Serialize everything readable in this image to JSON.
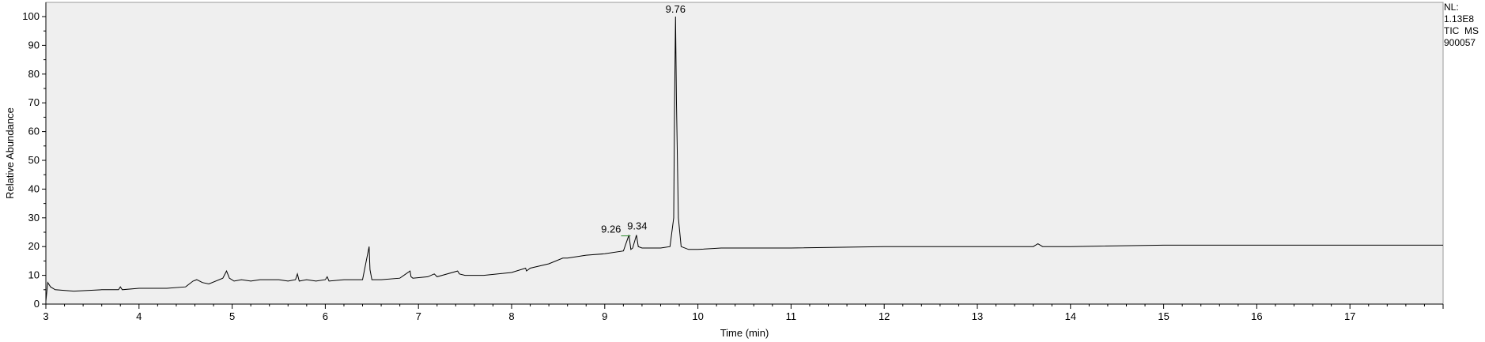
{
  "chart_data": {
    "type": "line",
    "title": "",
    "xlabel": "Time (min)",
    "ylabel": "Relative Abundance",
    "xlim": [
      3.0,
      18.0
    ],
    "ylim": [
      0,
      100
    ],
    "x_ticks": [
      3,
      4,
      5,
      6,
      7,
      8,
      9,
      10,
      11,
      12,
      13,
      14,
      15,
      16,
      17
    ],
    "y_ticks": [
      0,
      10,
      20,
      30,
      40,
      50,
      60,
      70,
      80,
      90,
      100
    ],
    "grid": false,
    "series": [
      {
        "x": [
          3.0,
          3.02,
          3.05,
          3.1,
          3.3,
          3.6,
          3.78,
          3.8,
          3.82,
          4.0,
          4.3,
          4.5,
          4.58,
          4.62,
          4.68,
          4.75,
          4.9,
          4.94,
          4.97,
          5.02,
          5.1,
          5.2,
          5.3,
          5.5,
          5.6,
          5.68,
          5.7,
          5.72,
          5.8,
          5.9,
          6.0,
          6.02,
          6.04,
          6.2,
          6.4,
          6.47,
          6.48,
          6.5,
          6.6,
          6.8,
          6.91,
          6.92,
          6.94,
          7.1,
          7.17,
          7.2,
          7.42,
          7.44,
          7.5,
          7.7,
          8.0,
          8.15,
          8.16,
          8.2,
          8.4,
          8.55,
          8.6,
          8.8,
          9.0,
          9.2,
          9.26,
          9.28,
          9.3,
          9.34,
          9.36,
          9.4,
          9.6,
          9.7,
          9.74,
          9.75,
          9.76,
          9.77,
          9.79,
          9.82,
          9.9,
          10.0,
          10.25,
          10.5,
          11.0,
          12.0,
          13.0,
          13.6,
          13.65,
          13.7,
          14.0,
          15.0,
          16.0,
          17.0,
          18.0
        ],
        "y": [
          1.0,
          7.5,
          6.0,
          5.0,
          4.5,
          5.0,
          5.0,
          6.0,
          5.0,
          5.5,
          5.5,
          6.0,
          8.0,
          8.5,
          7.5,
          7.0,
          9.0,
          11.5,
          9.0,
          8.0,
          8.5,
          8.0,
          8.5,
          8.5,
          8.0,
          8.5,
          10.5,
          8.0,
          8.5,
          8.0,
          8.5,
          9.5,
          8.0,
          8.5,
          8.5,
          20.0,
          12.0,
          8.5,
          8.5,
          9.0,
          11.5,
          9.5,
          9.0,
          9.5,
          10.5,
          9.5,
          11.5,
          10.5,
          10.0,
          10.0,
          11.0,
          12.5,
          11.5,
          12.5,
          14.0,
          16.0,
          16.0,
          17.0,
          17.5,
          18.5,
          24.0,
          19.0,
          19.5,
          24.0,
          20.0,
          19.5,
          19.5,
          20.0,
          30.0,
          70.0,
          100.0,
          70.0,
          30.0,
          20.0,
          19.0,
          19.0,
          19.5,
          19.5,
          19.5,
          20.0,
          20.0,
          20.0,
          21.0,
          20.0,
          20.0,
          20.5,
          20.5,
          20.5,
          20.5
        ]
      }
    ],
    "peak_labels": [
      {
        "x": 9.26,
        "y": 24,
        "text": "9.26"
      },
      {
        "x": 9.34,
        "y": 24,
        "text": "9.34"
      },
      {
        "x": 9.76,
        "y": 100,
        "text": "9.76"
      }
    ]
  },
  "info": {
    "nl_label": "NL:",
    "nl_value": "1.13E8",
    "scan": "TIC  MS",
    "sample": "900057"
  },
  "colors": {
    "plot_background": "#efefef",
    "trace": "#000000",
    "peak_leader": "#2e8b2e"
  }
}
